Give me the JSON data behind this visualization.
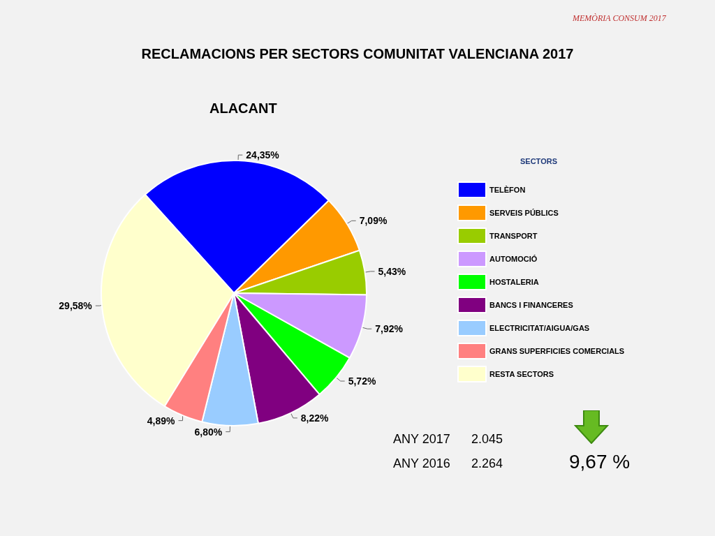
{
  "chart_data": {
    "type": "pie",
    "title": "RECLAMACIONS PER SECTORS COMUNITAT VALENCIANA 2017",
    "subtitle": "ALACANT",
    "legend_title": "SECTORS",
    "legend": "right",
    "categories": [
      "TELÈFON",
      "SERVEIS PÚBLICS",
      "TRANSPORT",
      "AUTOMOCIÓ",
      "HOSTALERIA",
      "BANCS I FINANCERES",
      "ELECTRICITAT/AIGUA/GAS",
      "GRANS SUPERFICIES COMERCIALS",
      "RESTA SECTORS"
    ],
    "values": [
      24.35,
      7.09,
      5.43,
      7.92,
      5.72,
      8.22,
      6.8,
      4.89,
      29.58
    ],
    "value_labels": [
      "24,35%",
      "7,09%",
      "5,43%",
      "7,92%",
      "5,72%",
      "8,22%",
      "6,80%",
      "4,89%",
      "29,58%"
    ],
    "colors": [
      "#0000ff",
      "#ff9900",
      "#99cc00",
      "#cc99ff",
      "#00ff00",
      "#800080",
      "#99ccff",
      "#ff8080",
      "#ffffcc"
    ],
    "annotations": [
      "MEMÒRIA CONSUM 2017",
      "ANY 2017",
      "2.045",
      "ANY 2016",
      "2.264",
      "9,67 %"
    ]
  }
}
